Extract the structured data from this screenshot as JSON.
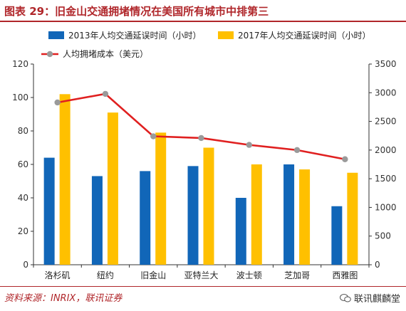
{
  "header": {
    "title": "图表 29：旧金山交通拥堵情况在美国所有城市中排第三"
  },
  "footer": {
    "source": "资料来源：INRIX，联讯证券",
    "watermark": "联讯麒麟堂"
  },
  "colors": {
    "bar2013": "#1166b8",
    "bar2017": "#ffc000",
    "line": "#e02020",
    "marker": "#9a9a9a",
    "accent": "#b0262a"
  },
  "chart_data": {
    "type": "bar",
    "categories": [
      "洛杉矶",
      "纽约",
      "旧金山",
      "亚特兰大",
      "波士顿",
      "芝加哥",
      "西雅图"
    ],
    "series": [
      {
        "name": "2013年人均交通延误时间（小时）",
        "values": [
          64,
          53,
          56,
          59,
          40,
          60,
          35
        ],
        "axis": "left"
      },
      {
        "name": "2017年人均交通延误时间（小时）",
        "values": [
          102,
          91,
          79,
          70,
          60,
          57,
          55
        ],
        "axis": "left"
      },
      {
        "name": "人均拥堵成本（美元）",
        "type": "line",
        "values": [
          2830,
          2980,
          2240,
          2210,
          2090,
          2000,
          1840
        ],
        "axis": "right"
      }
    ],
    "ylim_left": [
      0,
      120
    ],
    "yticks_left": [
      0,
      20,
      40,
      60,
      80,
      100,
      120
    ],
    "ylim_right": [
      0,
      3500
    ],
    "yticks_right": [
      0,
      500,
      1000,
      1500,
      2000,
      2500,
      3000,
      3500
    ],
    "legend_position": "top",
    "grid": false
  }
}
